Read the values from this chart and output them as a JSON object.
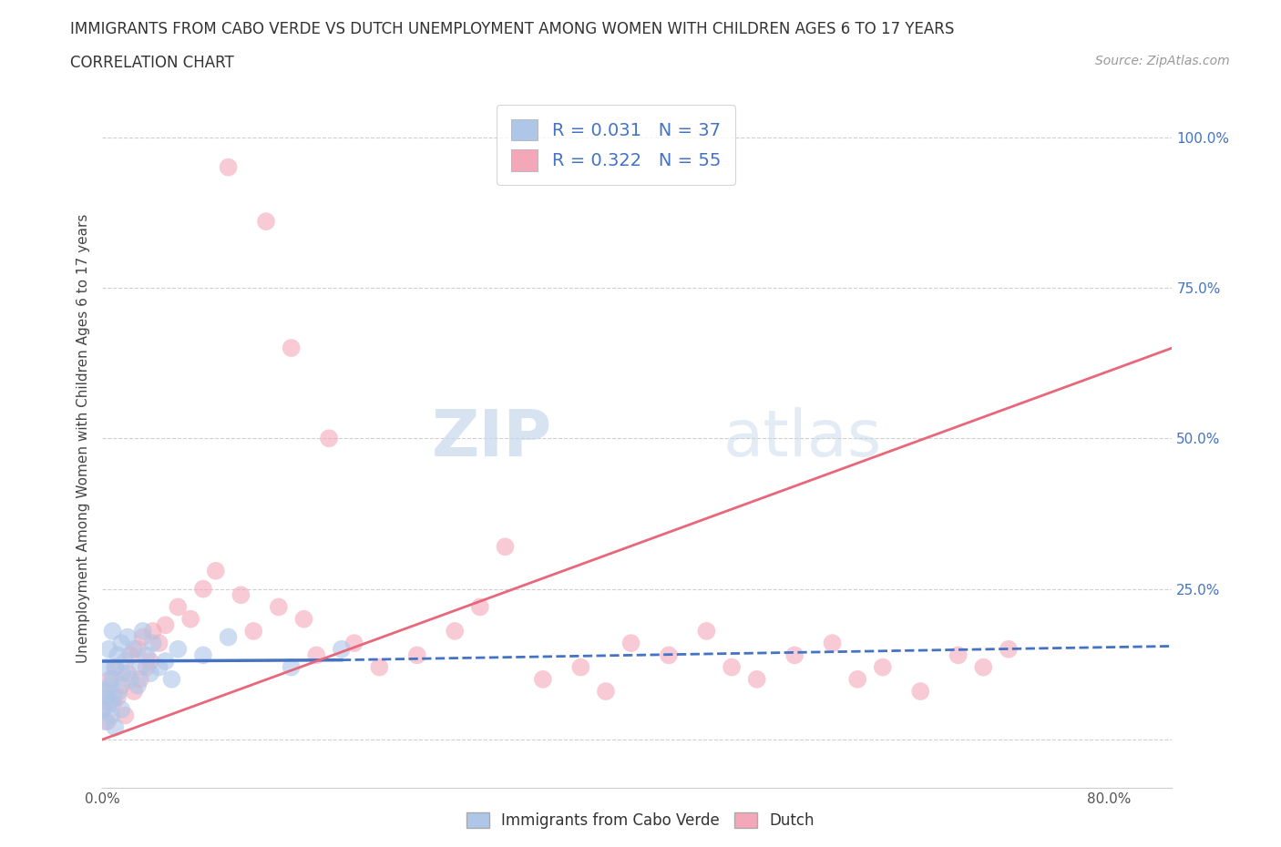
{
  "title": "IMMIGRANTS FROM CABO VERDE VS DUTCH UNEMPLOYMENT AMONG WOMEN WITH CHILDREN AGES 6 TO 17 YEARS",
  "subtitle": "CORRELATION CHART",
  "source": "Source: ZipAtlas.com",
  "ylabel": "Unemployment Among Women with Children Ages 6 to 17 years",
  "series1_label": "Immigrants from Cabo Verde",
  "series2_label": "Dutch",
  "r1": 0.031,
  "n1": 37,
  "r2": 0.322,
  "n2": 55,
  "color1": "#aec6e8",
  "color2": "#f4a7b9",
  "line_color1": "#4472c4",
  "line_color2": "#e8677a",
  "watermark_zip": "ZIP",
  "watermark_atlas": "atlas",
  "background_color": "#ffffff",
  "grid_color": "#d0d0d0",
  "legend_text_color": "#4472c4",
  "xlim": [
    0.0,
    0.85
  ],
  "ylim": [
    -0.08,
    1.08
  ],
  "cabo_verde_x": [
    0.0,
    0.001,
    0.002,
    0.003,
    0.004,
    0.005,
    0.005,
    0.006,
    0.007,
    0.008,
    0.008,
    0.009,
    0.01,
    0.01,
    0.012,
    0.013,
    0.015,
    0.015,
    0.016,
    0.018,
    0.02,
    0.022,
    0.025,
    0.028,
    0.03,
    0.032,
    0.035,
    0.038,
    0.04,
    0.045,
    0.05,
    0.055,
    0.06,
    0.08,
    0.1,
    0.15,
    0.19
  ],
  "cabo_verde_y": [
    0.08,
    0.05,
    0.03,
    0.12,
    0.07,
    0.15,
    0.06,
    0.09,
    0.04,
    0.1,
    0.18,
    0.07,
    0.12,
    0.02,
    0.14,
    0.08,
    0.16,
    0.05,
    0.11,
    0.13,
    0.17,
    0.1,
    0.15,
    0.09,
    0.12,
    0.18,
    0.14,
    0.11,
    0.16,
    0.12,
    0.13,
    0.1,
    0.15,
    0.14,
    0.17,
    0.12,
    0.15
  ],
  "dutch_x": [
    0.0,
    0.002,
    0.004,
    0.006,
    0.008,
    0.01,
    0.012,
    0.015,
    0.018,
    0.02,
    0.022,
    0.025,
    0.028,
    0.03,
    0.032,
    0.035,
    0.038,
    0.04,
    0.045,
    0.05,
    0.06,
    0.07,
    0.08,
    0.09,
    0.1,
    0.11,
    0.12,
    0.13,
    0.14,
    0.15,
    0.16,
    0.17,
    0.18,
    0.2,
    0.22,
    0.25,
    0.28,
    0.3,
    0.32,
    0.35,
    0.38,
    0.4,
    0.42,
    0.45,
    0.48,
    0.5,
    0.52,
    0.55,
    0.58,
    0.6,
    0.62,
    0.65,
    0.68,
    0.7,
    0.72
  ],
  "dutch_y": [
    0.05,
    0.08,
    0.03,
    0.1,
    0.06,
    0.12,
    0.07,
    0.09,
    0.04,
    0.11,
    0.14,
    0.08,
    0.15,
    0.1,
    0.17,
    0.12,
    0.13,
    0.18,
    0.16,
    0.19,
    0.22,
    0.2,
    0.25,
    0.28,
    0.95,
    0.24,
    0.18,
    0.86,
    0.22,
    0.65,
    0.2,
    0.14,
    0.5,
    0.16,
    0.12,
    0.14,
    0.18,
    0.22,
    0.32,
    0.1,
    0.12,
    0.08,
    0.16,
    0.14,
    0.18,
    0.12,
    0.1,
    0.14,
    0.16,
    0.1,
    0.12,
    0.08,
    0.14,
    0.12,
    0.15
  ],
  "line1_x0": 0.0,
  "line1_x1": 0.85,
  "line1_y0": 0.13,
  "line1_y1": 0.155,
  "line2_x0": 0.0,
  "line2_x1": 0.85,
  "line2_y0": 0.0,
  "line2_y1": 0.65
}
